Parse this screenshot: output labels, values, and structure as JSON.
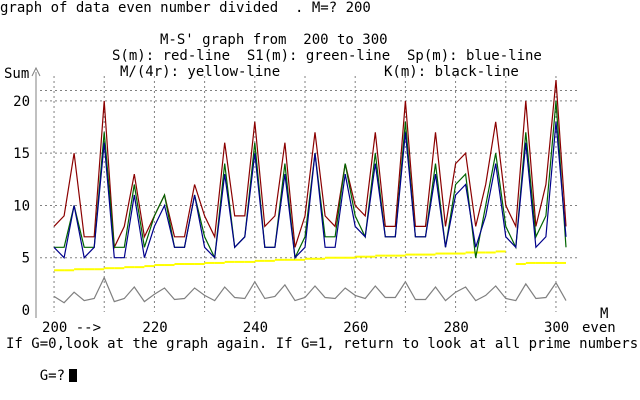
{
  "prompt_line": "graph of data even number divided  . M=? 200",
  "header": {
    "line1": "M-S' graph from  200 to 300",
    "line2": "S(m): red-line  S1(m): green-line  Sp(m): blue-line",
    "line3_left": "M/(4r): yellow-line",
    "line3_right": "K(m): black-line"
  },
  "footer": {
    "instruction": "If G=0,look at the graph again. If G=1, return to look at all prime numbers.",
    "input_prompt": "G=?"
  },
  "chart_data": {
    "type": "line",
    "title": "M-S' graph from  200 to 300",
    "ylabel": "Sum",
    "xlabel": "M",
    "xlabel_extra": "even",
    "x_first_tick_suffix": " -->",
    "x_ticks": [
      200,
      220,
      240,
      260,
      280,
      300
    ],
    "y_ticks": [
      0,
      5,
      10,
      15,
      20
    ],
    "xlim": [
      198,
      302
    ],
    "ylim": [
      0,
      22
    ],
    "grid": "dotted horizontal lines at 5, 10, 15, 20, 21 and dotted vertical lines every 10",
    "colors": {
      "red": "#8b0000",
      "green": "#006400",
      "blue": "#00008b",
      "yellow": "#ffff00",
      "black": "#808080",
      "grid": "#808080"
    },
    "x": [
      200,
      202,
      204,
      206,
      208,
      210,
      212,
      214,
      216,
      218,
      220,
      222,
      224,
      226,
      228,
      230,
      232,
      234,
      236,
      238,
      240,
      242,
      244,
      246,
      248,
      250,
      252,
      254,
      256,
      258,
      260,
      262,
      264,
      266,
      268,
      270,
      272,
      274,
      276,
      278,
      280,
      282,
      284,
      286,
      288,
      290,
      292,
      294,
      296,
      298,
      300,
      302
    ],
    "series": [
      {
        "name": "S(m)",
        "color": "red",
        "values": [
          8,
          9,
          15,
          7,
          7,
          20,
          6,
          8,
          13,
          7,
          9,
          11,
          7,
          7,
          12,
          9,
          7,
          16,
          9,
          9,
          18,
          8,
          9,
          16,
          6,
          9,
          17,
          9,
          8,
          14,
          10,
          9,
          17,
          8,
          8,
          20,
          8,
          8,
          17,
          8,
          14,
          15,
          8,
          12,
          18,
          10,
          8,
          20,
          8,
          12,
          22,
          8
        ]
      },
      {
        "name": "S1(m)",
        "color": "green",
        "values": [
          6,
          6,
          10,
          6,
          6,
          17,
          6,
          6,
          12,
          6,
          9,
          11,
          6,
          6,
          11,
          7,
          5,
          14,
          6,
          7,
          16,
          6,
          6,
          14,
          5,
          7,
          15,
          7,
          7,
          14,
          9,
          7,
          15,
          7,
          7,
          18,
          7,
          7,
          14,
          6,
          12,
          13,
          5,
          10,
          15,
          8,
          6,
          17,
          7,
          9,
          20,
          6
        ]
      },
      {
        "name": "Sp(m)",
        "color": "blue",
        "values": [
          6,
          5,
          10,
          5,
          6,
          16,
          5,
          5,
          11,
          5,
          8,
          10,
          6,
          6,
          11,
          6,
          5,
          13,
          6,
          7,
          15,
          6,
          6,
          13,
          5,
          6,
          15,
          6,
          6,
          13,
          8,
          7,
          14,
          7,
          7,
          17,
          7,
          7,
          13,
          6,
          11,
          12,
          6,
          9,
          14,
          7,
          6,
          16,
          6,
          7,
          18,
          7
        ]
      },
      {
        "name": "M/(4r)",
        "color": "yellow",
        "values": [
          3.8,
          3.8,
          3.9,
          3.9,
          3.9,
          4,
          4,
          4.1,
          4.1,
          4.2,
          4.3,
          4.3,
          4.4,
          4.4,
          4.4,
          4.5,
          4.5,
          4.6,
          4.6,
          4.6,
          4.7,
          4.7,
          4.8,
          4.8,
          4.8,
          4.9,
          4.9,
          5,
          5,
          5,
          5.1,
          5.1,
          5.2,
          5.2,
          5.2,
          5.3,
          5.3,
          5.3,
          5.4,
          5.4,
          5.4,
          5.5,
          5.5,
          5.5,
          5.6,
          null,
          4.4,
          4.5,
          4.5,
          4.5,
          4.5,
          4.5
        ]
      },
      {
        "name": "K(m)",
        "color": "black",
        "values": [
          1.3,
          0.7,
          1.7,
          0.9,
          1.1,
          3.1,
          0.8,
          1.1,
          2.2,
          0.8,
          1.5,
          2.1,
          1,
          1.1,
          2.1,
          1.4,
          0.9,
          2.2,
          1.2,
          1.1,
          2.7,
          1.1,
          1.3,
          2.4,
          0.9,
          1.2,
          2.3,
          1.2,
          1.1,
          2.1,
          1.4,
          1.1,
          2.3,
          1.2,
          1.2,
          2.7,
          1,
          1,
          2.2,
          0.9,
          1.7,
          2.2,
          0.9,
          1.4,
          2.3,
          1.1,
          0.9,
          2.5,
          1.1,
          1.2,
          2.6,
          0.9
        ]
      }
    ]
  }
}
